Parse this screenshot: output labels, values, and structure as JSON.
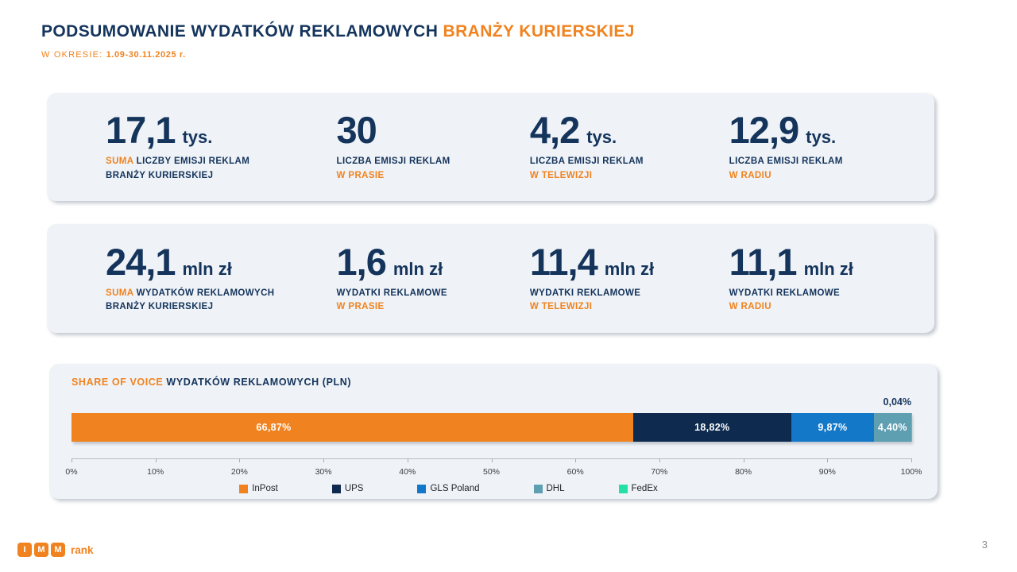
{
  "header": {
    "title_main": "PODSUMOWANIE WYDATKÓW REKLAMOWYCH ",
    "title_accent": "BRANŻY KURIERSKIEJ",
    "period_label": "W OKRESIE: ",
    "period_value": "1.09-30.11.2025 r."
  },
  "stats_rows": [
    {
      "items": [
        {
          "value": "17,1",
          "unit": "tys.",
          "label_prefix": "SUMA",
          "label_line1": " LICZBY EMISJI REKLAM",
          "label_line2": "BRANŻY KURIERSKIEJ"
        },
        {
          "value": "30",
          "unit": "",
          "label_prefix": "",
          "label_line1": "LICZBA EMISJI REKLAM",
          "label_line2": "W PRASIE"
        },
        {
          "value": "4,2",
          "unit": "tys.",
          "label_prefix": "",
          "label_line1": "LICZBA EMISJI REKLAM",
          "label_line2": "W TELEWIZJI"
        },
        {
          "value": "12,9",
          "unit": "tys.",
          "label_prefix": "",
          "label_line1": "LICZBA EMISJI REKLAM",
          "label_line2": "W RADIU"
        }
      ]
    },
    {
      "items": [
        {
          "value": "24,1",
          "unit": "mln zł",
          "label_prefix": "SUMA",
          "label_line1": " WYDATKÓW REKLAMOWYCH",
          "label_line2": "BRANŻY KURIERSKIEJ"
        },
        {
          "value": "1,6",
          "unit": "mln zł",
          "label_prefix": "",
          "label_line1": "WYDATKI REKLAMOWE",
          "label_line2": "W PRASIE"
        },
        {
          "value": "11,4",
          "unit": "mln zł",
          "label_prefix": "",
          "label_line1": "WYDATKI REKLAMOWE",
          "label_line2": "W TELEWIZJI"
        },
        {
          "value": "11,1",
          "unit": "mln zł",
          "label_prefix": "",
          "label_line1": "WYDATKI REKLAMOWE",
          "label_line2": "W RADIU"
        }
      ]
    }
  ],
  "chart_data": {
    "type": "bar",
    "subtype": "horizontal-stacked-100pct",
    "title_accent": "SHARE OF VOICE",
    "title_rest": " WYDATKÓW REKLAMOWYCH (PLN)",
    "xlim": [
      0,
      100
    ],
    "x_ticks": [
      "0%",
      "10%",
      "20%",
      "30%",
      "40%",
      "50%",
      "60%",
      "70%",
      "80%",
      "90%",
      "100%"
    ],
    "legend_position": "bottom",
    "series": [
      {
        "name": "InPost",
        "value": 66.87,
        "label": "66,87%",
        "color": "#F0831F",
        "label_x_pct": 36
      },
      {
        "name": "UPS",
        "value": 18.82,
        "label": "18,82%",
        "color": "#0E2B4F"
      },
      {
        "name": "GLS Poland",
        "value": 9.87,
        "label": "9,87%",
        "color": "#1478C8"
      },
      {
        "name": "DHL",
        "value": 4.4,
        "label": "4,40%",
        "color": "#5E9FB1"
      },
      {
        "name": "FedEx",
        "value": 0.04,
        "label": "0,04%",
        "color": "#25E0A5",
        "label_outside": true
      }
    ]
  },
  "footer": {
    "logo_letters": [
      "I",
      "M",
      "M"
    ],
    "logo_text": "rank",
    "page_number": "3"
  },
  "colors": {
    "accent_orange": "#F0831F",
    "navy_text": "#14345C",
    "card_background": "#EFF2F6"
  }
}
